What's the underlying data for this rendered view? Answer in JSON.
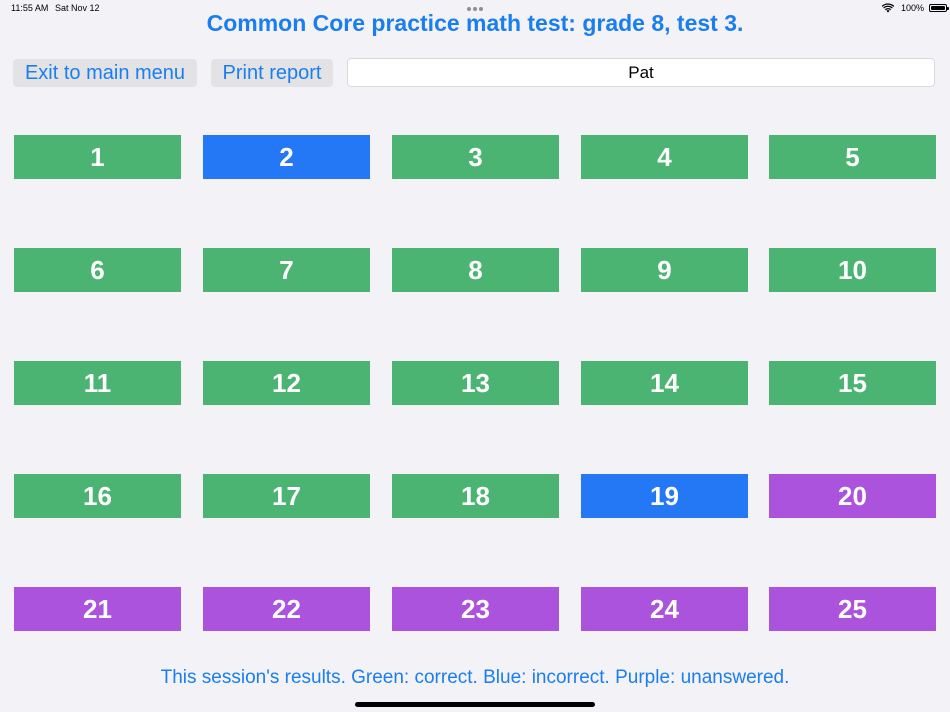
{
  "status_bar": {
    "time": "11:55 AM",
    "date": "Sat Nov 12",
    "battery": "100%"
  },
  "title": "Common Core practice math test: grade 8, test 3.",
  "toolbar": {
    "exit_label": "Exit to main menu",
    "print_label": "Print report"
  },
  "name_field": {
    "value": "Pat"
  },
  "colors": {
    "correct": "#4bb472",
    "incorrect": "#2478f6",
    "unanswered": "#ac53de"
  },
  "questions": [
    {
      "label": "1",
      "status": "correct"
    },
    {
      "label": "2",
      "status": "incorrect"
    },
    {
      "label": "3",
      "status": "correct"
    },
    {
      "label": "4",
      "status": "correct"
    },
    {
      "label": "5",
      "status": "correct"
    },
    {
      "label": "6",
      "status": "correct"
    },
    {
      "label": "7",
      "status": "correct"
    },
    {
      "label": "8",
      "status": "correct"
    },
    {
      "label": "9",
      "status": "correct"
    },
    {
      "label": "10",
      "status": "correct"
    },
    {
      "label": "11",
      "status": "correct"
    },
    {
      "label": "12",
      "status": "correct"
    },
    {
      "label": "13",
      "status": "correct"
    },
    {
      "label": "14",
      "status": "correct"
    },
    {
      "label": "15",
      "status": "correct"
    },
    {
      "label": "16",
      "status": "correct"
    },
    {
      "label": "17",
      "status": "correct"
    },
    {
      "label": "18",
      "status": "correct"
    },
    {
      "label": "19",
      "status": "incorrect"
    },
    {
      "label": "20",
      "status": "unanswered"
    },
    {
      "label": "21",
      "status": "unanswered"
    },
    {
      "label": "22",
      "status": "unanswered"
    },
    {
      "label": "23",
      "status": "unanswered"
    },
    {
      "label": "24",
      "status": "unanswered"
    },
    {
      "label": "25",
      "status": "unanswered"
    }
  ],
  "legend": "This session's results. Green: correct. Blue: incorrect. Purple: unanswered."
}
